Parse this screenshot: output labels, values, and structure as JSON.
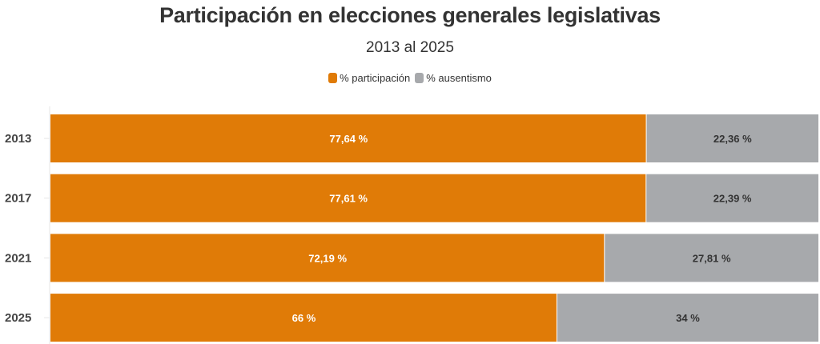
{
  "chart_data": {
    "type": "bar",
    "orientation": "horizontal",
    "stacked": true,
    "title": "Participación en elecciones generales legislativas",
    "subtitle": "2013 al 2025",
    "categories": [
      "2013",
      "2017",
      "2021",
      "2025"
    ],
    "series": [
      {
        "name": "% participación",
        "color": "#e07b07",
        "label_color": "#ffffff",
        "values": [
          77.64,
          77.61,
          72.19,
          66
        ],
        "labels": [
          "77,64 %",
          "77,61 %",
          "72,19 %",
          "66 %"
        ]
      },
      {
        "name": "% ausentismo",
        "color": "#a7a9ac",
        "label_color": "#333333",
        "values": [
          22.36,
          22.39,
          27.81,
          34
        ],
        "labels": [
          "22,36 %",
          "22,39 %",
          "27,81 %",
          "34 %"
        ]
      }
    ],
    "xlim": [
      0,
      100
    ],
    "xlabel": "",
    "ylabel": "",
    "legend_position": "top-center",
    "grid": false
  }
}
